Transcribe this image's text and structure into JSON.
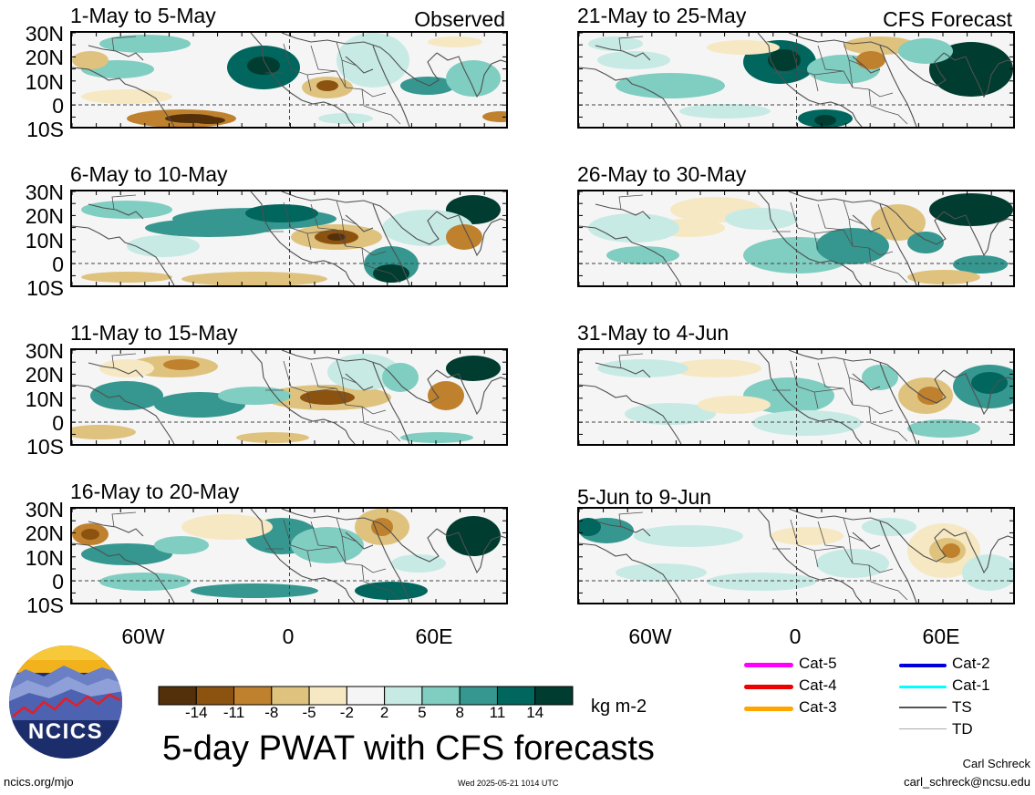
{
  "colors": {
    "scale": [
      "#54300a",
      "#8c5210",
      "#bf812d",
      "#dfc27d",
      "#f6e8c3",
      "#f5f5f5",
      "#c7eae5",
      "#80cdc1",
      "#35978f",
      "#01665e",
      "#003c30"
    ],
    "land_border": "#505050"
  },
  "left_column": {
    "source_label": "Observed",
    "panels": [
      {
        "title": "1-May to 5-May"
      },
      {
        "title": "6-May to 10-May"
      },
      {
        "title": "11-May to 15-May"
      },
      {
        "title": "16-May to 20-May"
      }
    ]
  },
  "right_column": {
    "source_label": "CFS Forecast",
    "panels": [
      {
        "title": "21-May to 25-May"
      },
      {
        "title": "26-May to 30-May"
      },
      {
        "title": "31-May to 4-Jun"
      },
      {
        "title": "5-Jun to 9-Jun"
      }
    ]
  },
  "lat_labels": [
    "30N",
    "20N",
    "10N",
    "0",
    "10S"
  ],
  "lon_labels": [
    "60W",
    "0",
    "60E"
  ],
  "colorbar": {
    "ticks": [
      "-14",
      "-11",
      "-8",
      "-5",
      "-2",
      "2",
      "5",
      "8",
      "11",
      "14"
    ],
    "units": "kg m-2"
  },
  "title": "5-day PWAT with CFS forecasts",
  "storm_legend": [
    {
      "label": "Cat-5",
      "color": "#ff00ff"
    },
    {
      "label": "Cat-4",
      "color": "#ee0000"
    },
    {
      "label": "Cat-3",
      "color": "#ffa500"
    },
    {
      "label": "Cat-2",
      "color": "#0000dd"
    },
    {
      "label": "Cat-1",
      "color": "#00ffff"
    },
    {
      "label": "TS",
      "color": "#555555"
    },
    {
      "label": "TD",
      "color": "#aaaaaa"
    }
  ],
  "logo": {
    "text": "NCICS"
  },
  "footer": {
    "url": "ncics.org/mjo",
    "timestamp": "Wed 2025-05-21 1014 UTC",
    "author": "Carl Schreck",
    "email": "carl_schreck@ncsu.edu"
  }
}
